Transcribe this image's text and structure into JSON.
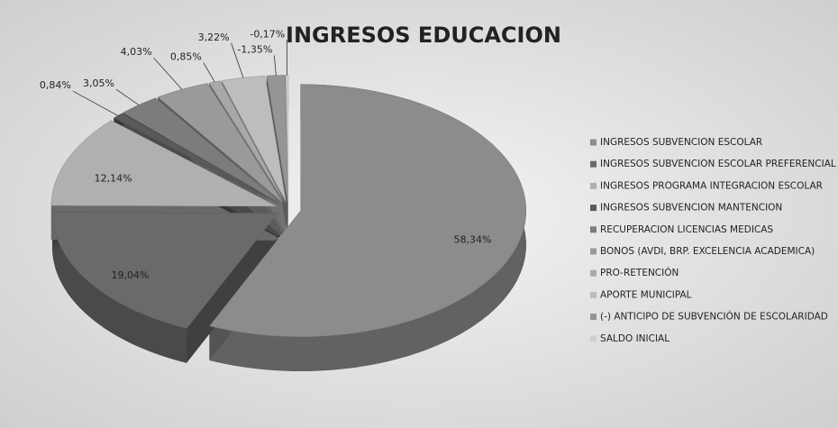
{
  "chart_data": {
    "type": "pie",
    "title": "INGRESOS EDUCACION",
    "categories": [
      "INGRESOS SUBVENCION ESCOLAR",
      "INGRESOS SUBVENCION ESCOLAR PREFERENCIAL",
      "INGRESOS PROGRAMA INTEGRACION ESCOLAR",
      "INGRESOS SUBVENCION MANTENCION",
      "RECUPERACION LICENCIAS MEDICAS",
      "BONOS (AVDI, BRP. EXCELENCIA ACADEMICA)",
      "PRO-RETENCIÓN",
      "APORTE MUNICIPAL",
      "(-) ANTICIPO DE SUBVENCIÓN DE ESCOLARIDAD",
      "SALDO INICIAL"
    ],
    "values": [
      58.34,
      19.04,
      12.14,
      0.84,
      3.05,
      4.03,
      0.85,
      3.22,
      -1.35,
      -0.17
    ],
    "value_labels": [
      "58,34%",
      "19,04%",
      "12,14%",
      "0,84%",
      "3,05%",
      "4,03%",
      "0,85%",
      "3,22%",
      "-1,35%",
      "-0,17%"
    ],
    "colors": [
      "#8c8c8c",
      "#6a6a6a",
      "#b0b0b0",
      "#5a5a5a",
      "#7c7c7c",
      "#9a9a9a",
      "#a8a8a8",
      "#bdbdbd",
      "#959595",
      "#cfcfcf"
    ],
    "legend": "right"
  }
}
